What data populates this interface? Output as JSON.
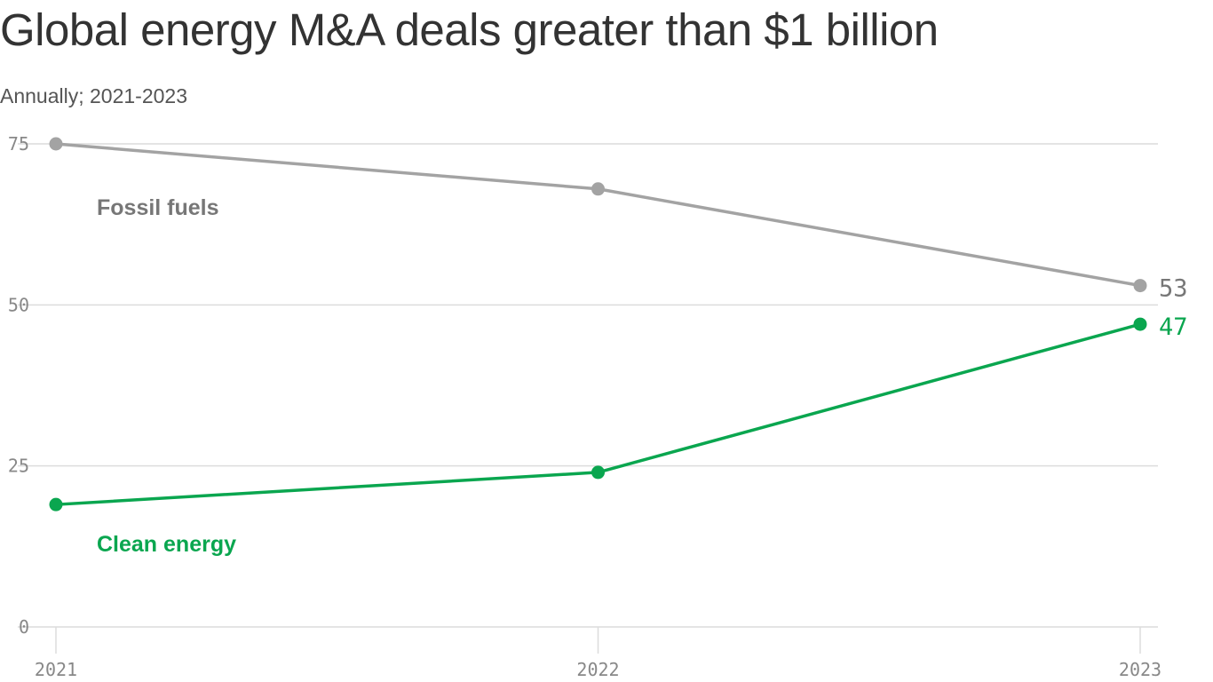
{
  "chart_data": {
    "type": "line",
    "title": "Global energy M&A deals greater than $1 billion",
    "subtitle": "Annually; 2021-2023",
    "x": [
      "2021",
      "2022",
      "2023"
    ],
    "ylim": [
      0,
      75
    ],
    "yticks": [
      0,
      25,
      50,
      75
    ],
    "grid": true,
    "series": [
      {
        "name": "Fossil fuels",
        "values": [
          75,
          68,
          53
        ],
        "color": "#a3a3a3",
        "label_color": "#777777",
        "end_label": "53",
        "end_label_color": "#777777"
      },
      {
        "name": "Clean energy",
        "values": [
          19,
          24,
          47
        ],
        "color": "#0aa64f",
        "label_color": "#0aa64f",
        "end_label": "47",
        "end_label_color": "#0aa64f"
      }
    ]
  }
}
